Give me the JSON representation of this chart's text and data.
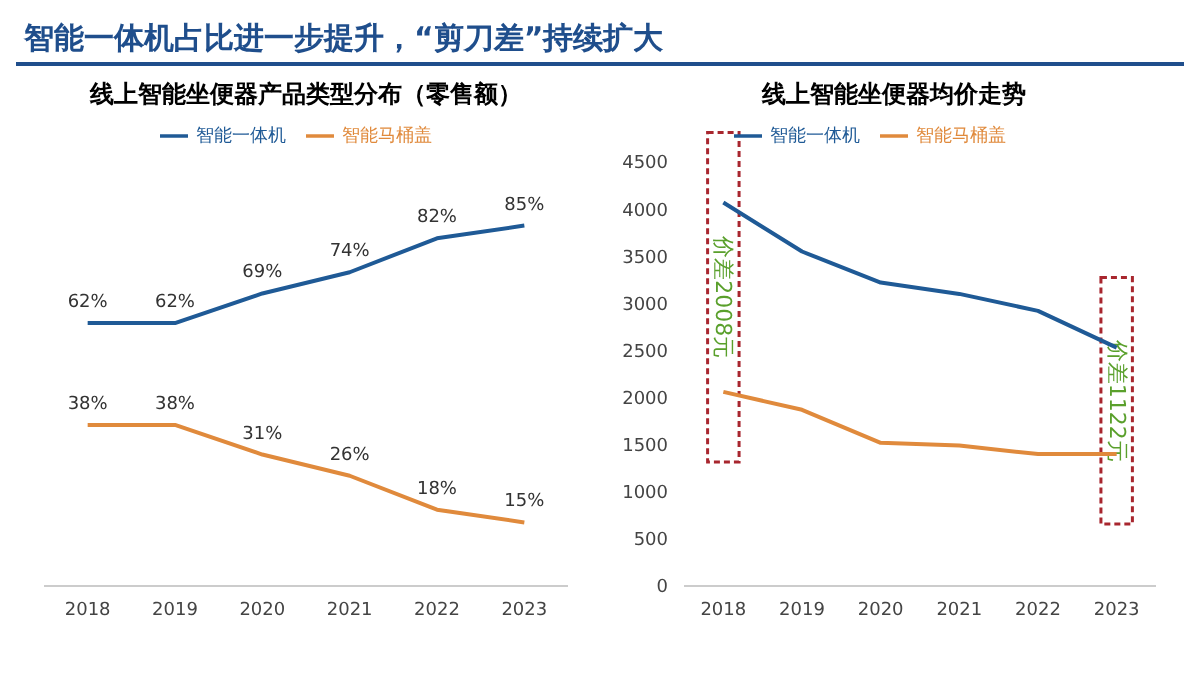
{
  "chart_data": [
    {
      "type": "line",
      "title": "线上智能坐便器产品类型分布（零售额）",
      "annotations": [
        "智能一体机占比进一步提升，“剪刀差”持续扩大"
      ],
      "categories": [
        "2018",
        "2019",
        "2020",
        "2021",
        "2022",
        "2023"
      ],
      "series": [
        {
          "name": "智能一体机",
          "color": "#1f5a96",
          "values": [
            62,
            62,
            69,
            74,
            82,
            85
          ],
          "value_labels": [
            "62%",
            "62%",
            "69%",
            "74%",
            "82%",
            "85%"
          ]
        },
        {
          "name": "智能马桶盖",
          "color": "#e08a3c",
          "values": [
            38,
            38,
            31,
            26,
            18,
            15
          ],
          "value_labels": [
            "38%",
            "38%",
            "31%",
            "26%",
            "18%",
            "15%"
          ]
        }
      ],
      "legend": "top",
      "grid": false,
      "tick_labels": "x"
    },
    {
      "type": "line",
      "title": "线上智能坐便器均价走势",
      "categories": [
        "2018",
        "2019",
        "2020",
        "2021",
        "2022",
        "2023"
      ],
      "series": [
        {
          "name": "智能一体机",
          "color": "#1f5a96",
          "values": [
            4070,
            3550,
            3220,
            3100,
            2920,
            2530
          ]
        },
        {
          "name": "智能马桶盖",
          "color": "#e08a3c",
          "values": [
            2060,
            1870,
            1520,
            1490,
            1400,
            1400
          ]
        }
      ],
      "annotations": [
        "价差2008元",
        "价差1122元"
      ],
      "ylim": [
        0,
        4500
      ],
      "yticks": [
        0,
        500,
        1000,
        1500,
        2000,
        2500,
        3000,
        3500,
        4000,
        4500
      ],
      "legend": "top",
      "grid": false
    }
  ]
}
